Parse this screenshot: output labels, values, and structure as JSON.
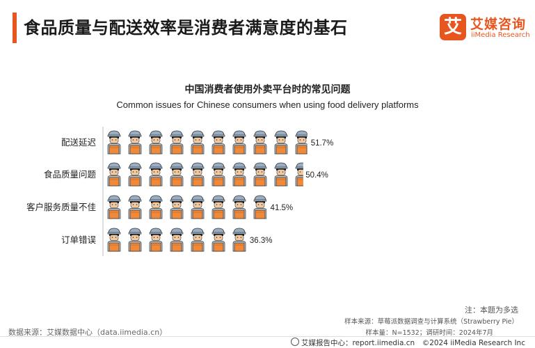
{
  "header": {
    "title": "食品质量与配送效率是消费者满意度的基石",
    "logo_mark": "艾",
    "logo_cn": "艾媒咨询",
    "logo_en": "iiMedia Research"
  },
  "chart_data": {
    "type": "bar",
    "title": "中国消费者使用外卖平台时的常见问题",
    "subtitle": "Common issues for Chinese consumers when using food delivery platforms",
    "categories": [
      "配送延迟",
      "食品质量问题",
      "客户服务质量不佳",
      "订单错误"
    ],
    "values": [
      51.7,
      50.4,
      41.5,
      36.3
    ],
    "value_labels": [
      "51.7%",
      "50.4%",
      "41.5%",
      "36.3%"
    ],
    "unit": "%",
    "icon": "delivery-person-icon",
    "xlim": [
      0,
      100
    ],
    "grid": false,
    "legend": "none",
    "colors": {
      "skin": "#f2c9a0",
      "hair": "#1f1f1f",
      "cap": "#9aaec3",
      "shirt": "#b9c8d6",
      "box": "#f08a3a",
      "outline": "#333333",
      "axis": "#bbbbbb"
    }
  },
  "notes": {
    "note": "注：本题为多选",
    "sample_source": "样本来源：草莓派数据调查与计算系统（Strawberry Pie）",
    "sample_size": "样本量：N=1532；调研时间：2024年7月"
  },
  "footer": {
    "data_source": "数据来源：艾媒数据中心（data.iimedia.cn）",
    "report_center": "艾媒报告中心：report.iimedia.cn　©2024  iiMedia Research  Inc"
  },
  "colors": {
    "accent": "#e8561f"
  }
}
